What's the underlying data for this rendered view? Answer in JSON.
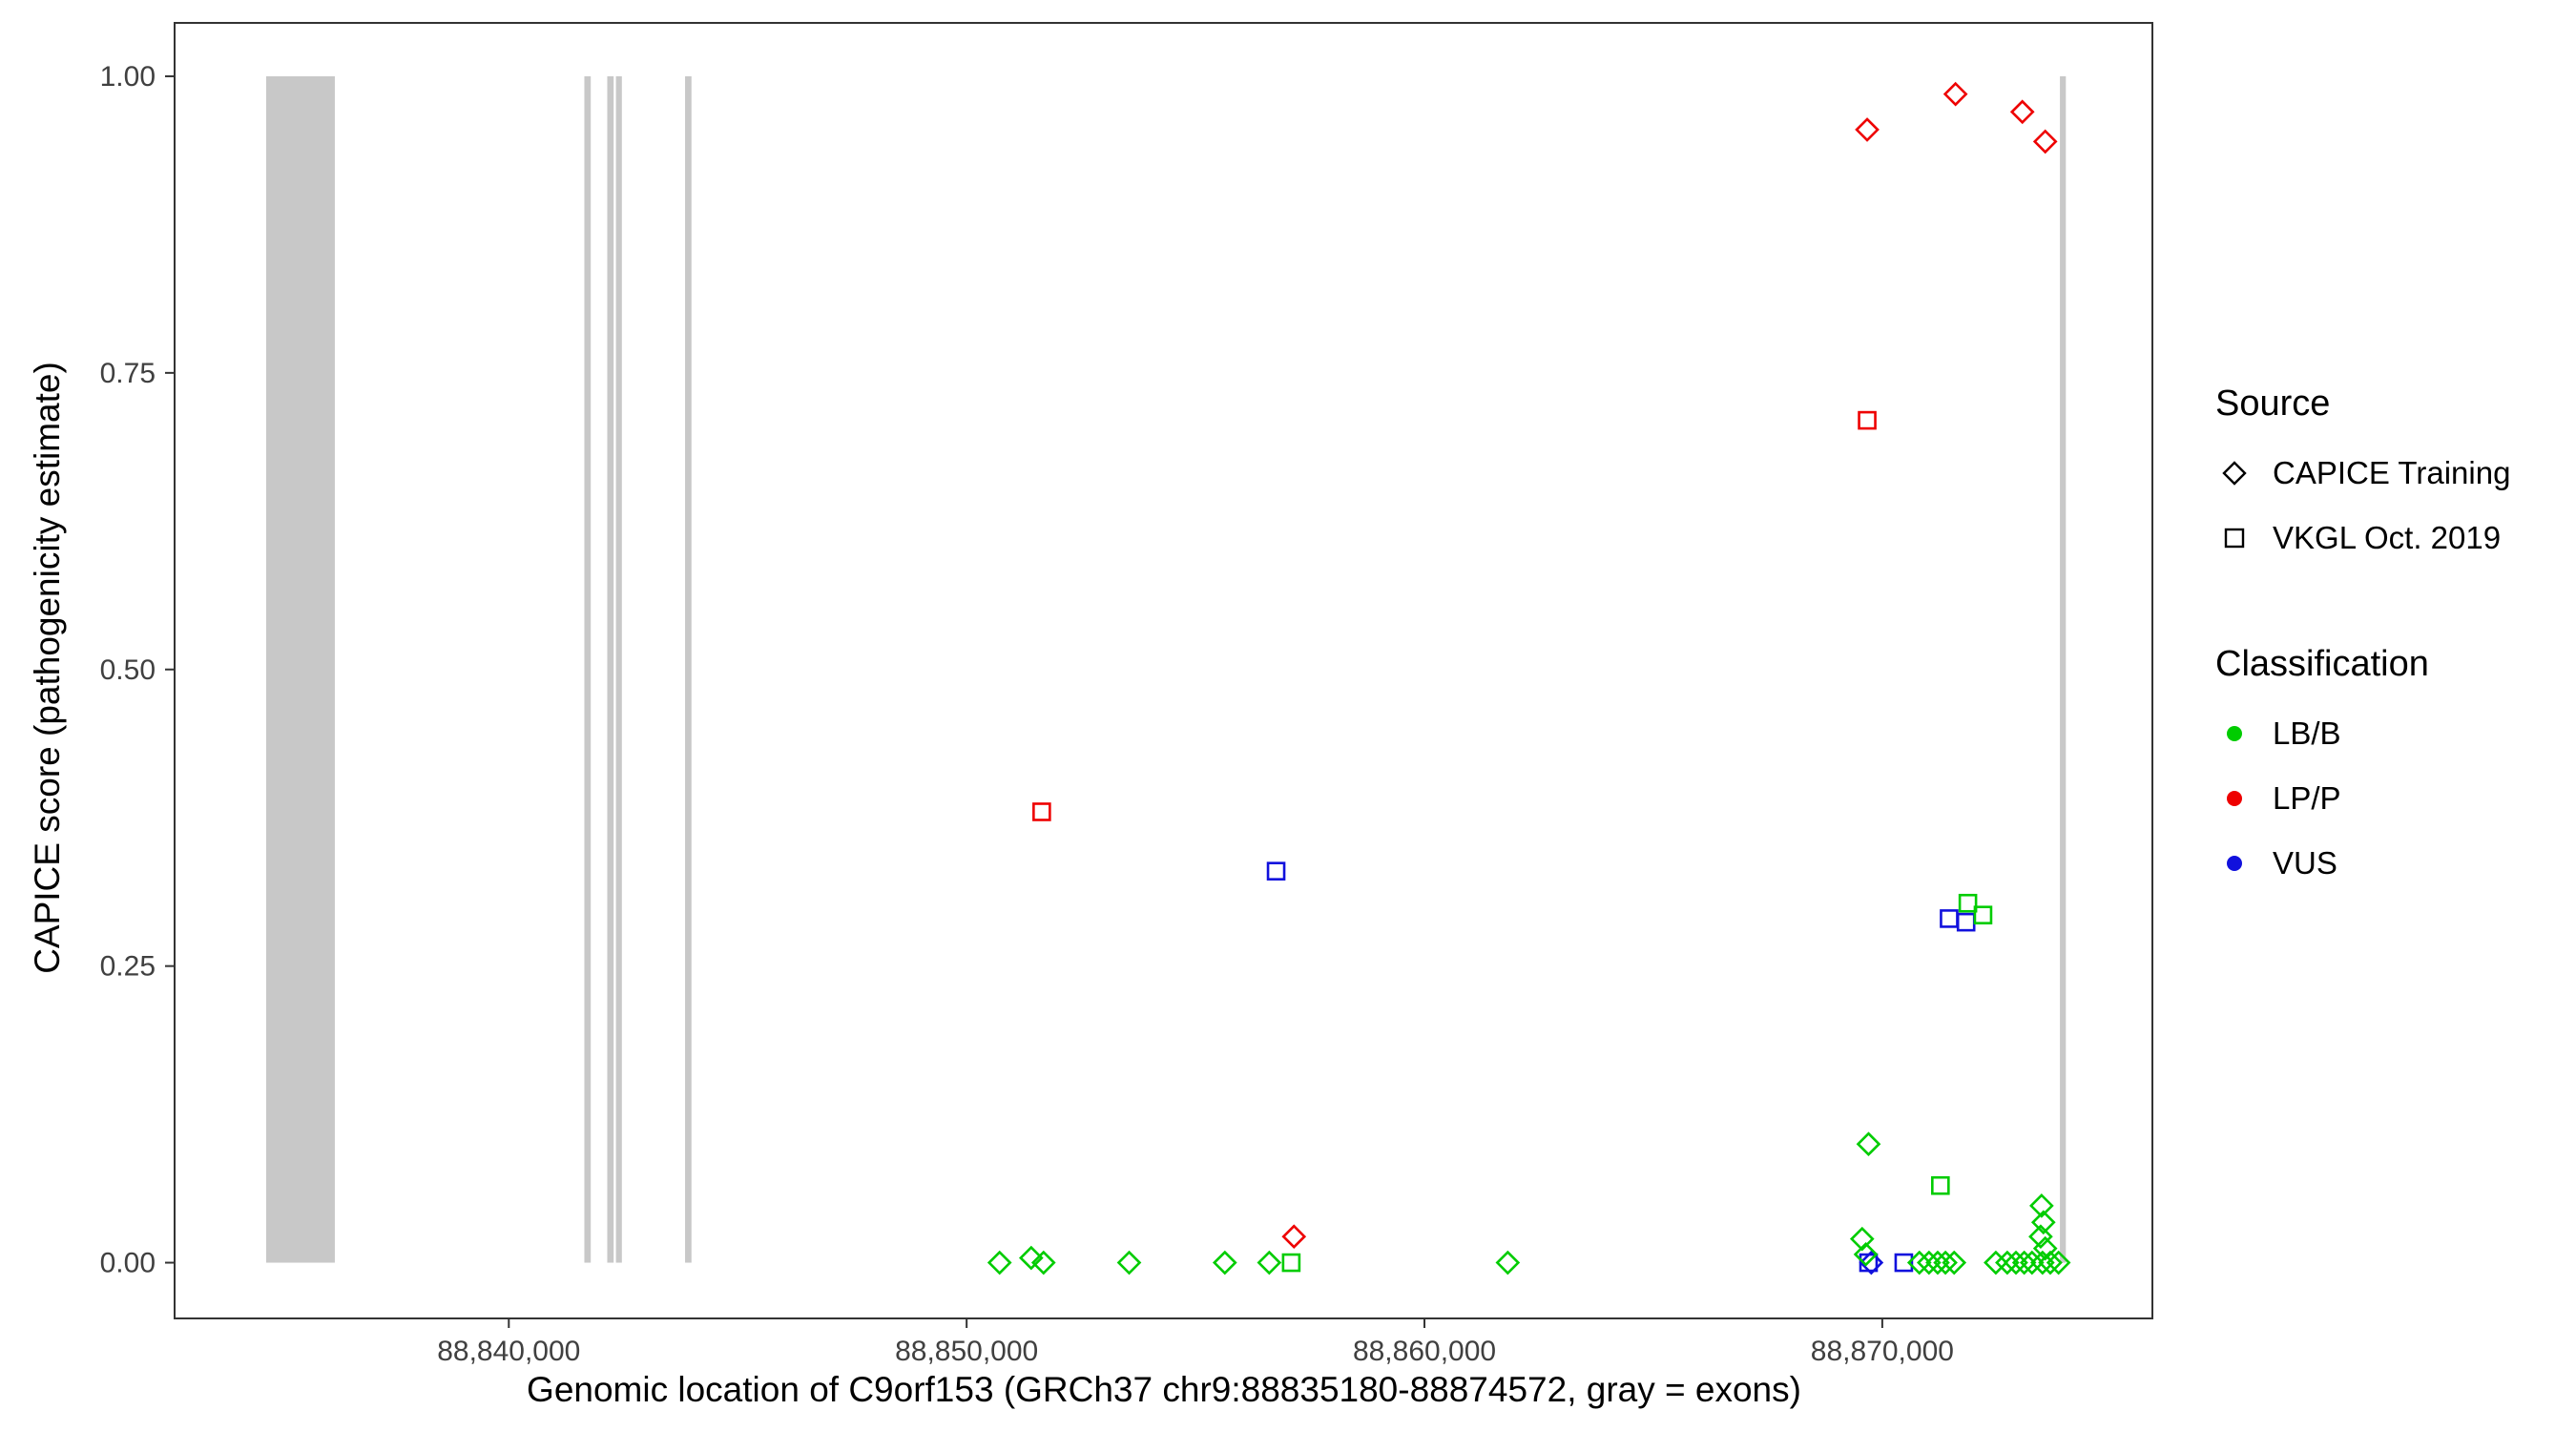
{
  "axes": {
    "x_title": "Genomic location of C9orf153 (GRCh37 chr9:88835180-88874572, gray = exons)",
    "y_title": "CAPICE score (pathogenicity estimate)"
  },
  "legend": {
    "source": {
      "title": "Source",
      "items": [
        {
          "label": "CAPICE Training",
          "shape": "diamond"
        },
        {
          "label": "VKGL Oct. 2019",
          "shape": "square"
        }
      ]
    },
    "classification": {
      "title": "Classification",
      "items": [
        {
          "label": "LB/B",
          "color": "#00CC00"
        },
        {
          "label": "LP/P",
          "color": "#EE0000"
        },
        {
          "label": "VUS",
          "color": "#1111DD"
        }
      ]
    }
  },
  "chart_data": {
    "type": "scatter",
    "title": "",
    "xlabel": "Genomic location of C9orf153 (GRCh37 chr9:88835180-88874572, gray = exons)",
    "ylabel": "CAPICE score (pathogenicity estimate)",
    "xlim": [
      88832700,
      88875900
    ],
    "ylim": [
      -0.047,
      1.045
    ],
    "grid": false,
    "legend_position": "right",
    "exon_color": "#C8C8C8",
    "exons_note": "gray = exons",
    "exons": [
      [
        88834700,
        88836200
      ],
      [
        88841650,
        88841790
      ],
      [
        88842150,
        88842290
      ],
      [
        88842340,
        88842470
      ],
      [
        88843850,
        88843990
      ],
      [
        88873880,
        88874010
      ]
    ],
    "x_ticks": [
      {
        "value": 88840000,
        "label": "88,840,000"
      },
      {
        "value": 88850000,
        "label": "88,850,000"
      },
      {
        "value": 88860000,
        "label": "88,860,000"
      },
      {
        "value": 88870000,
        "label": "88,870,000"
      }
    ],
    "y_ticks": [
      {
        "value": 0.0,
        "label": "0.00"
      },
      {
        "value": 0.25,
        "label": "0.25"
      },
      {
        "value": 0.5,
        "label": "0.50"
      },
      {
        "value": 0.75,
        "label": "0.75"
      },
      {
        "value": 1.0,
        "label": "1.00"
      }
    ],
    "shape_by_source": {
      "CAPICE Training": "diamond",
      "VKGL Oct. 2019": "square"
    },
    "color_by_class": {
      "LB/B": "#00CC00",
      "LP/P": "#EE0000",
      "VUS": "#1111DD"
    },
    "points": [
      {
        "x": 88869670,
        "y": 0.955,
        "source": "CAPICE Training",
        "class": "LP/P"
      },
      {
        "x": 88871600,
        "y": 0.985,
        "source": "CAPICE Training",
        "class": "LP/P"
      },
      {
        "x": 88873060,
        "y": 0.97,
        "source": "CAPICE Training",
        "class": "LP/P"
      },
      {
        "x": 88873560,
        "y": 0.945,
        "source": "CAPICE Training",
        "class": "LP/P"
      },
      {
        "x": 88857150,
        "y": 0.022,
        "source": "CAPICE Training",
        "class": "LP/P"
      },
      {
        "x": 88851640,
        "y": 0.38,
        "source": "VKGL Oct. 2019",
        "class": "LP/P"
      },
      {
        "x": 88869670,
        "y": 0.71,
        "source": "VKGL Oct. 2019",
        "class": "LP/P"
      },
      {
        "x": 88856760,
        "y": 0.33,
        "source": "VKGL Oct. 2019",
        "class": "VUS"
      },
      {
        "x": 88871460,
        "y": 0.29,
        "source": "VKGL Oct. 2019",
        "class": "VUS"
      },
      {
        "x": 88871830,
        "y": 0.287,
        "source": "VKGL Oct. 2019",
        "class": "VUS"
      },
      {
        "x": 88869700,
        "y": 0.0,
        "source": "VKGL Oct. 2019",
        "class": "VUS"
      },
      {
        "x": 88870470,
        "y": 0.0,
        "source": "VKGL Oct. 2019",
        "class": "VUS"
      },
      {
        "x": 88869760,
        "y": 0.0,
        "source": "CAPICE Training",
        "class": "VUS"
      },
      {
        "x": 88871270,
        "y": 0.065,
        "source": "VKGL Oct. 2019",
        "class": "LB/B"
      },
      {
        "x": 88871870,
        "y": 0.303,
        "source": "VKGL Oct. 2019",
        "class": "LB/B"
      },
      {
        "x": 88872200,
        "y": 0.293,
        "source": "VKGL Oct. 2019",
        "class": "LB/B"
      },
      {
        "x": 88857090,
        "y": 0.0,
        "source": "VKGL Oct. 2019",
        "class": "LB/B"
      },
      {
        "x": 88850720,
        "y": 0.0,
        "source": "CAPICE Training",
        "class": "LB/B"
      },
      {
        "x": 88851410,
        "y": 0.004,
        "source": "CAPICE Training",
        "class": "LB/B"
      },
      {
        "x": 88851680,
        "y": 0.0,
        "source": "CAPICE Training",
        "class": "LB/B"
      },
      {
        "x": 88853550,
        "y": 0.0,
        "source": "CAPICE Training",
        "class": "LB/B"
      },
      {
        "x": 88855640,
        "y": 0.0,
        "source": "CAPICE Training",
        "class": "LB/B"
      },
      {
        "x": 88856610,
        "y": 0.0,
        "source": "CAPICE Training",
        "class": "LB/B"
      },
      {
        "x": 88861820,
        "y": 0.0,
        "source": "CAPICE Training",
        "class": "LB/B"
      },
      {
        "x": 88869700,
        "y": 0.1,
        "source": "CAPICE Training",
        "class": "LB/B"
      },
      {
        "x": 88869560,
        "y": 0.02,
        "source": "CAPICE Training",
        "class": "LB/B"
      },
      {
        "x": 88869640,
        "y": 0.007,
        "source": "CAPICE Training",
        "class": "LB/B"
      },
      {
        "x": 88870810,
        "y": 0.0,
        "source": "CAPICE Training",
        "class": "LB/B"
      },
      {
        "x": 88871020,
        "y": 0.0,
        "source": "CAPICE Training",
        "class": "LB/B"
      },
      {
        "x": 88871210,
        "y": 0.0,
        "source": "CAPICE Training",
        "class": "LB/B"
      },
      {
        "x": 88871380,
        "y": 0.0,
        "source": "CAPICE Training",
        "class": "LB/B"
      },
      {
        "x": 88871570,
        "y": 0.0,
        "source": "CAPICE Training",
        "class": "LB/B"
      },
      {
        "x": 88872480,
        "y": 0.0,
        "source": "CAPICE Training",
        "class": "LB/B"
      },
      {
        "x": 88872730,
        "y": 0.0,
        "source": "CAPICE Training",
        "class": "LB/B"
      },
      {
        "x": 88872920,
        "y": 0.0,
        "source": "CAPICE Training",
        "class": "LB/B"
      },
      {
        "x": 88873100,
        "y": 0.0,
        "source": "CAPICE Training",
        "class": "LB/B"
      },
      {
        "x": 88873270,
        "y": 0.0,
        "source": "CAPICE Training",
        "class": "LB/B"
      },
      {
        "x": 88873500,
        "y": 0.0,
        "source": "CAPICE Training",
        "class": "LB/B"
      },
      {
        "x": 88873670,
        "y": 0.0,
        "source": "CAPICE Training",
        "class": "LB/B"
      },
      {
        "x": 88873850,
        "y": 0.0,
        "source": "CAPICE Training",
        "class": "LB/B"
      },
      {
        "x": 88873480,
        "y": 0.048,
        "source": "CAPICE Training",
        "class": "LB/B"
      },
      {
        "x": 88873520,
        "y": 0.034,
        "source": "CAPICE Training",
        "class": "LB/B"
      },
      {
        "x": 88873460,
        "y": 0.022,
        "source": "CAPICE Training",
        "class": "LB/B"
      },
      {
        "x": 88873560,
        "y": 0.012,
        "source": "CAPICE Training",
        "class": "LB/B"
      }
    ]
  }
}
